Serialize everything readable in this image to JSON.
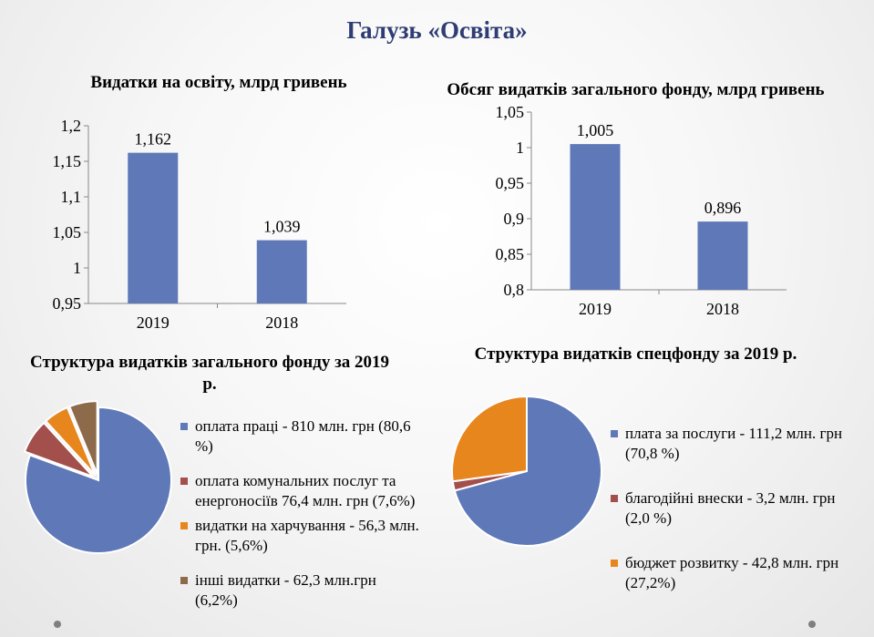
{
  "slide": {
    "title": "Галузь «Освіта»"
  },
  "colors": {
    "bar": "#5f78b8",
    "blue": "#5f78b8",
    "red": "#a34f4c",
    "orange": "#e8861e",
    "brown": "#8c6a4a",
    "title": "#2e3d73"
  },
  "chart_data": [
    {
      "type": "bar",
      "title": "Видатки на освіту, млрд гривень",
      "categories": [
        "2019",
        "2018"
      ],
      "values": [
        1.162,
        1.039
      ],
      "value_labels": [
        "1,162",
        "1,039"
      ],
      "ylim": [
        0.95,
        1.2
      ],
      "yticks": [
        0.95,
        1,
        1.05,
        1.1,
        1.15,
        1.2
      ],
      "ytick_labels": [
        "0,95",
        "1",
        "1,05",
        "1,1",
        "1,15",
        "1,2"
      ],
      "grid": false
    },
    {
      "type": "bar",
      "title": "Обсяг видатків загального фонду, млрд гривень",
      "categories": [
        "2019",
        "2018"
      ],
      "values": [
        1.005,
        0.896
      ],
      "value_labels": [
        "1,005",
        "0,896"
      ],
      "ylim": [
        0.8,
        1.05
      ],
      "yticks": [
        0.8,
        0.85,
        0.9,
        0.95,
        1,
        1.05
      ],
      "ytick_labels": [
        "0,8",
        "0,85",
        "0,9",
        "0,95",
        "1",
        "1,05"
      ],
      "grid": false
    },
    {
      "type": "pie",
      "title": "Структура видатків загального фонду за 2019 р.",
      "legend_position": "right",
      "slices": [
        {
          "label": "оплата праці - 810 млн. грн (80,6 %)",
          "value": 80.6,
          "color": "#5f78b8"
        },
        {
          "label": "оплата комунальних послуг та енергоносіїв 76,4 млн. грн (7,6%)",
          "value": 7.6,
          "color": "#a34f4c"
        },
        {
          "label": "видатки на харчування - 56,3 млн. грн. (5,6%)",
          "value": 5.6,
          "color": "#e8861e"
        },
        {
          "label": "інші видатки - 62,3 млн.грн (6,2%)",
          "value": 6.2,
          "color": "#8c6a4a"
        }
      ]
    },
    {
      "type": "pie",
      "title": "Структура видатків спецфонду за 2019 р.",
      "legend_position": "right",
      "slices": [
        {
          "label": "плата за послуги - 111,2 млн. грн (70,8 %)",
          "value": 70.8,
          "color": "#5f78b8"
        },
        {
          "label": "благодійні внески - 3,2 млн. грн (2,0 %)",
          "value": 2.0,
          "color": "#a34f4c"
        },
        {
          "label": "бюджет розвитку -  42,8 млн. грн (27,2%)",
          "value": 27.2,
          "color": "#e8861e"
        }
      ]
    }
  ]
}
